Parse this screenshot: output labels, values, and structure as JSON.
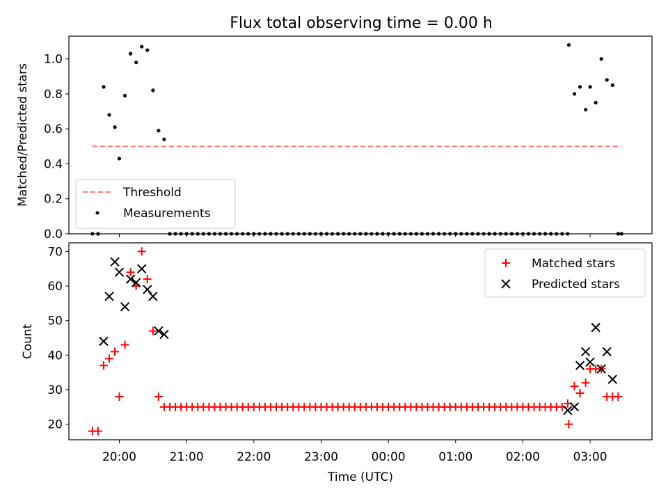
{
  "figure": {
    "title": "Flux total observing time = 0.00 h",
    "xlabel": "Time (UTC)",
    "xticks": [
      "20:00",
      "21:00",
      "22:00",
      "23:00",
      "00:00",
      "01:00",
      "02:00",
      "03:00"
    ]
  },
  "chart_data": [
    {
      "type": "scatter",
      "ylabel": "Matched/Predicted stars",
      "ylim": [
        0,
        1.13
      ],
      "yticks": [
        "0.0",
        "0.2",
        "0.4",
        "0.6",
        "0.8",
        "1.0"
      ],
      "xlim_hours": [
        19.25,
        27.92
      ],
      "legend_position": "lower-left",
      "series": [
        {
          "name": "Threshold",
          "kind": "line",
          "style": "dashed",
          "color": "#ff7a7a",
          "x_start": "19:36",
          "x_end": "03:28",
          "y": 0.5
        },
        {
          "name": "Measurements",
          "kind": "scatter",
          "color": "#000000",
          "points": [
            [
              "19:36",
              0.0
            ],
            [
              "19:41",
              0.0
            ],
            [
              "19:46",
              0.84
            ],
            [
              "19:51",
              0.68
            ],
            [
              "19:56",
              0.61
            ],
            [
              "20:00",
              0.43
            ],
            [
              "20:05",
              0.79
            ],
            [
              "20:10",
              1.03
            ],
            [
              "20:15",
              0.98
            ],
            [
              "20:20",
              1.07
            ],
            [
              "20:25",
              1.05
            ],
            [
              "20:30",
              0.82
            ],
            [
              "20:35",
              0.59
            ],
            [
              "20:40",
              0.54
            ],
            [
              "20:45",
              0.0
            ],
            [
              "20:50",
              0.0
            ],
            [
              "20:55",
              0.0
            ],
            [
              "21:00",
              0.0
            ],
            [
              "21:05",
              0.0
            ],
            [
              "21:10",
              0.0
            ],
            [
              "21:15",
              0.0
            ],
            [
              "21:20",
              0.0
            ],
            [
              "21:25",
              0.0
            ],
            [
              "21:30",
              0.0
            ],
            [
              "21:35",
              0.0
            ],
            [
              "21:40",
              0.0
            ],
            [
              "21:45",
              0.0
            ],
            [
              "21:50",
              0.0
            ],
            [
              "21:55",
              0.0
            ],
            [
              "22:00",
              0.0
            ],
            [
              "22:05",
              0.0
            ],
            [
              "22:10",
              0.0
            ],
            [
              "22:15",
              0.0
            ],
            [
              "22:20",
              0.0
            ],
            [
              "22:25",
              0.0
            ],
            [
              "22:30",
              0.0
            ],
            [
              "22:35",
              0.0
            ],
            [
              "22:40",
              0.0
            ],
            [
              "22:45",
              0.0
            ],
            [
              "22:50",
              0.0
            ],
            [
              "22:55",
              0.0
            ],
            [
              "23:00",
              0.0
            ],
            [
              "23:05",
              0.0
            ],
            [
              "23:10",
              0.0
            ],
            [
              "23:15",
              0.0
            ],
            [
              "23:20",
              0.0
            ],
            [
              "23:25",
              0.0
            ],
            [
              "23:30",
              0.0
            ],
            [
              "23:35",
              0.0
            ],
            [
              "23:40",
              0.0
            ],
            [
              "23:45",
              0.0
            ],
            [
              "23:50",
              0.0
            ],
            [
              "23:55",
              0.0
            ],
            [
              "00:00",
              0.0
            ],
            [
              "00:05",
              0.0
            ],
            [
              "00:10",
              0.0
            ],
            [
              "00:15",
              0.0
            ],
            [
              "00:20",
              0.0
            ],
            [
              "00:25",
              0.0
            ],
            [
              "00:30",
              0.0
            ],
            [
              "00:35",
              0.0
            ],
            [
              "00:40",
              0.0
            ],
            [
              "00:45",
              0.0
            ],
            [
              "00:50",
              0.0
            ],
            [
              "00:55",
              0.0
            ],
            [
              "01:00",
              0.0
            ],
            [
              "01:05",
              0.0
            ],
            [
              "01:10",
              0.0
            ],
            [
              "01:15",
              0.0
            ],
            [
              "01:20",
              0.0
            ],
            [
              "01:25",
              0.0
            ],
            [
              "01:30",
              0.0
            ],
            [
              "01:35",
              0.0
            ],
            [
              "01:40",
              0.0
            ],
            [
              "01:45",
              0.0
            ],
            [
              "01:50",
              0.0
            ],
            [
              "01:55",
              0.0
            ],
            [
              "02:00",
              0.0
            ],
            [
              "02:05",
              0.0
            ],
            [
              "02:10",
              0.0
            ],
            [
              "02:15",
              0.0
            ],
            [
              "02:20",
              0.0
            ],
            [
              "02:25",
              0.0
            ],
            [
              "02:30",
              0.0
            ],
            [
              "02:35",
              0.0
            ],
            [
              "02:40",
              0.0
            ],
            [
              "02:41",
              1.08
            ],
            [
              "02:46",
              0.8
            ],
            [
              "02:51",
              0.84
            ],
            [
              "02:56",
              0.71
            ],
            [
              "03:00",
              0.84
            ],
            [
              "03:05",
              0.75
            ],
            [
              "03:10",
              1.0
            ],
            [
              "03:15",
              0.88
            ],
            [
              "03:20",
              0.85
            ],
            [
              "03:25",
              0.0
            ],
            [
              "03:28",
              0.0
            ]
          ]
        }
      ]
    },
    {
      "type": "scatter",
      "ylabel": "Count",
      "ylim": [
        15.5,
        72.5
      ],
      "yticks": [
        "20",
        "30",
        "40",
        "50",
        "60",
        "70"
      ],
      "xlim_hours": [
        19.25,
        27.92
      ],
      "legend_position": "upper-right",
      "series": [
        {
          "name": "Matched stars",
          "marker": "plus",
          "color": "#ff0000",
          "points": [
            [
              "19:36",
              18
            ],
            [
              "19:41",
              18
            ],
            [
              "19:46",
              37
            ],
            [
              "19:51",
              39
            ],
            [
              "19:56",
              41
            ],
            [
              "20:00",
              28
            ],
            [
              "20:05",
              43
            ],
            [
              "20:10",
              64
            ],
            [
              "20:15",
              60
            ],
            [
              "20:20",
              70
            ],
            [
              "20:25",
              62
            ],
            [
              "20:30",
              47
            ],
            [
              "20:35",
              28
            ],
            [
              "20:40",
              25
            ],
            [
              "20:45",
              25
            ],
            [
              "20:50",
              25
            ],
            [
              "20:55",
              25
            ],
            [
              "21:00",
              25
            ],
            [
              "21:05",
              25
            ],
            [
              "21:10",
              25
            ],
            [
              "21:15",
              25
            ],
            [
              "21:20",
              25
            ],
            [
              "21:25",
              25
            ],
            [
              "21:30",
              25
            ],
            [
              "21:35",
              25
            ],
            [
              "21:40",
              25
            ],
            [
              "21:45",
              25
            ],
            [
              "21:50",
              25
            ],
            [
              "21:55",
              25
            ],
            [
              "22:00",
              25
            ],
            [
              "22:05",
              25
            ],
            [
              "22:10",
              25
            ],
            [
              "22:15",
              25
            ],
            [
              "22:20",
              25
            ],
            [
              "22:25",
              25
            ],
            [
              "22:30",
              25
            ],
            [
              "22:35",
              25
            ],
            [
              "22:40",
              25
            ],
            [
              "22:45",
              25
            ],
            [
              "22:50",
              25
            ],
            [
              "22:55",
              25
            ],
            [
              "23:00",
              25
            ],
            [
              "23:05",
              25
            ],
            [
              "23:10",
              25
            ],
            [
              "23:15",
              25
            ],
            [
              "23:20",
              25
            ],
            [
              "23:25",
              25
            ],
            [
              "23:30",
              25
            ],
            [
              "23:35",
              25
            ],
            [
              "23:40",
              25
            ],
            [
              "23:45",
              25
            ],
            [
              "23:50",
              25
            ],
            [
              "23:55",
              25
            ],
            [
              "00:00",
              25
            ],
            [
              "00:05",
              25
            ],
            [
              "00:10",
              25
            ],
            [
              "00:15",
              25
            ],
            [
              "00:20",
              25
            ],
            [
              "00:25",
              25
            ],
            [
              "00:30",
              25
            ],
            [
              "00:35",
              25
            ],
            [
              "00:40",
              25
            ],
            [
              "00:45",
              25
            ],
            [
              "00:50",
              25
            ],
            [
              "00:55",
              25
            ],
            [
              "01:00",
              25
            ],
            [
              "01:05",
              25
            ],
            [
              "01:10",
              25
            ],
            [
              "01:15",
              25
            ],
            [
              "01:20",
              25
            ],
            [
              "01:25",
              25
            ],
            [
              "01:30",
              25
            ],
            [
              "01:35",
              25
            ],
            [
              "01:40",
              25
            ],
            [
              "01:45",
              25
            ],
            [
              "01:50",
              25
            ],
            [
              "01:55",
              25
            ],
            [
              "02:00",
              25
            ],
            [
              "02:05",
              25
            ],
            [
              "02:10",
              25
            ],
            [
              "02:15",
              25
            ],
            [
              "02:20",
              25
            ],
            [
              "02:25",
              25
            ],
            [
              "02:30",
              25
            ],
            [
              "02:35",
              25
            ],
            [
              "02:40",
              26
            ],
            [
              "02:41",
              20
            ],
            [
              "02:46",
              31
            ],
            [
              "02:51",
              29
            ],
            [
              "02:56",
              32
            ],
            [
              "03:00",
              36
            ],
            [
              "03:05",
              36
            ],
            [
              "03:10",
              36
            ],
            [
              "03:15",
              28
            ],
            [
              "03:20",
              28
            ],
            [
              "03:25",
              28
            ]
          ]
        },
        {
          "name": "Predicted stars",
          "marker": "x",
          "color": "#000000",
          "points": [
            [
              "19:46",
              44
            ],
            [
              "19:51",
              57
            ],
            [
              "19:56",
              67
            ],
            [
              "20:00",
              64
            ],
            [
              "20:05",
              54
            ],
            [
              "20:10",
              62
            ],
            [
              "20:15",
              61
            ],
            [
              "20:20",
              65
            ],
            [
              "20:25",
              59
            ],
            [
              "20:30",
              57
            ],
            [
              "20:35",
              47
            ],
            [
              "20:40",
              46
            ],
            [
              "02:40",
              24
            ],
            [
              "02:46",
              25
            ],
            [
              "02:51",
              37
            ],
            [
              "02:56",
              41
            ],
            [
              "03:00",
              38
            ],
            [
              "03:05",
              48
            ],
            [
              "03:10",
              36
            ],
            [
              "03:15",
              41
            ],
            [
              "03:20",
              33
            ]
          ]
        }
      ]
    }
  ]
}
